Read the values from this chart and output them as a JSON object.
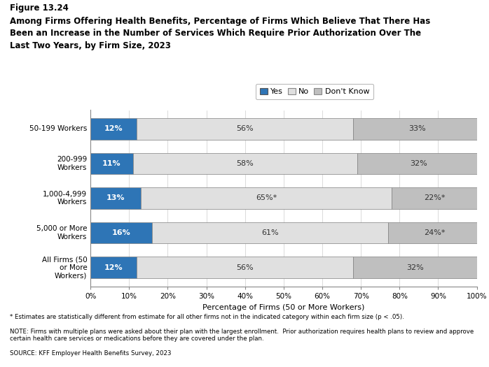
{
  "title_line1": "Figure 13.24",
  "title_line2": "Among Firms Offering Health Benefits, Percentage of Firms Which Believe That There Has\nBeen an Increase in the Number of Services Which Require Prior Authorization Over The\nLast Two Years, by Firm Size, 2023",
  "categories": [
    "50-199 Workers",
    "200-999\nWorkers",
    "1,000-4,999\nWorkers",
    "5,000 or More\nWorkers",
    "All Firms (50\nor More\nWorkers)"
  ],
  "yes_values": [
    12,
    11,
    13,
    16,
    12
  ],
  "no_values": [
    56,
    58,
    65,
    61,
    56
  ],
  "dont_know_values": [
    33,
    32,
    22,
    24,
    32
  ],
  "no_labels": [
    "56%",
    "58%",
    "65%*",
    "61%",
    "56%"
  ],
  "dont_know_labels": [
    "33%",
    "32%",
    "22%*",
    "24%*",
    "32%"
  ],
  "yes_color": "#2E75B6",
  "no_color": "#E0E0E0",
  "dont_know_color": "#BFBFBF",
  "bar_edge_color": "#808080",
  "xlabel": "Percentage of Firms (50 or More Workers)",
  "footnote1": "* Estimates are statistically different from estimate for all other firms not in the indicated category within each firm size (p < .05).",
  "footnote2": "NOTE: Firms with multiple plans were asked about their plan with the largest enrollment.  Prior authorization requires health plans to review and approve certain health care services or medications before they are covered under the plan.",
  "footnote3": "SOURCE: KFF Employer Health Benefits Survey, 2023",
  "xlim": [
    0,
    100
  ],
  "xticks": [
    0,
    10,
    20,
    30,
    40,
    50,
    60,
    70,
    80,
    90,
    100
  ]
}
